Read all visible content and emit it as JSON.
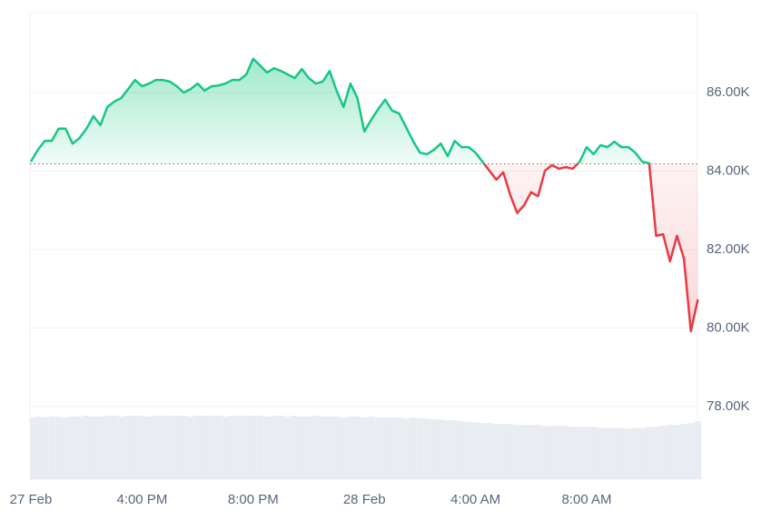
{
  "chart_data": {
    "type": "line",
    "categories": [
      "27 Feb",
      null,
      null,
      null,
      null,
      null,
      null,
      null,
      null,
      null,
      null,
      null,
      null,
      null,
      null,
      null,
      "4:00 PM",
      null,
      null,
      null,
      null,
      null,
      null,
      null,
      null,
      null,
      null,
      null,
      null,
      null,
      null,
      null,
      "8:00 PM",
      null,
      null,
      null,
      null,
      null,
      null,
      null,
      null,
      null,
      null,
      null,
      null,
      null,
      null,
      null,
      "28 Feb",
      null,
      null,
      null,
      null,
      null,
      null,
      null,
      null,
      null,
      null,
      null,
      null,
      null,
      null,
      null,
      "4:00 AM",
      null,
      null,
      null,
      null,
      null,
      null,
      null,
      null,
      null,
      null,
      null,
      null,
      null,
      null,
      null,
      "8:00 AM",
      null,
      null,
      null,
      null,
      null,
      null,
      null,
      null,
      null,
      null,
      null,
      null,
      null,
      null,
      null,
      null
    ],
    "values": [
      84240,
      84540,
      84770,
      84770,
      85080,
      85080,
      84700,
      84840,
      85080,
      85400,
      85170,
      85630,
      85770,
      85860,
      86090,
      86320,
      86160,
      86230,
      86320,
      86320,
      86280,
      86160,
      86000,
      86090,
      86230,
      86050,
      86160,
      86180,
      86230,
      86320,
      86320,
      86460,
      86860,
      86690,
      86510,
      86620,
      86550,
      86460,
      86370,
      86600,
      86370,
      86230,
      86280,
      86550,
      86050,
      85630,
      86230,
      85860,
      85010,
      85310,
      85580,
      85820,
      85540,
      85470,
      85120,
      84770,
      84470,
      84430,
      84540,
      84700,
      84380,
      84770,
      84610,
      84610,
      84470,
      84240,
      84010,
      83780,
      83970,
      83390,
      82930,
      83130,
      83460,
      83360,
      84010,
      84150,
      84060,
      84100,
      84060,
      84240,
      84610,
      84430,
      84660,
      84610,
      84750,
      84610,
      84610,
      84470,
      84240,
      84200,
      82350,
      82390,
      81700,
      82350,
      81770,
      79920,
      80730
    ],
    "volume": [
      66,
      67,
      66,
      67,
      67,
      66,
      67,
      67,
      68,
      67,
      67,
      68,
      68,
      67,
      68,
      68,
      68,
      67,
      68,
      68,
      68,
      68,
      68,
      67,
      68,
      68,
      68,
      68,
      67,
      68,
      68,
      68,
      68,
      68,
      67,
      68,
      68,
      67,
      68,
      67,
      67,
      68,
      67,
      67,
      67,
      66,
      67,
      67,
      66,
      67,
      66,
      66,
      66,
      66,
      65,
      66,
      65,
      65,
      64,
      64,
      63,
      63,
      62,
      61,
      61,
      60,
      60,
      59,
      59,
      59,
      58,
      58,
      58,
      58,
      57,
      57,
      57,
      57,
      56,
      56,
      56,
      56,
      55,
      55,
      55,
      55,
      54,
      55,
      55,
      56,
      56,
      57,
      58,
      58,
      59,
      60,
      62
    ],
    "baseline": 84185,
    "up_color": "#16c784",
    "down_color": "#ea3943",
    "volume_color": "#e9ecf1",
    "ylim": [
      76150,
      88035
    ],
    "yticks": [
      {
        "value": 78000,
        "label": "78.00K"
      },
      {
        "value": 80000,
        "label": "80.00K"
      },
      {
        "value": 82000,
        "label": "82.00K"
      },
      {
        "value": 84000,
        "label": "84.00K"
      },
      {
        "value": 86000,
        "label": "86.00K"
      }
    ],
    "grid": true
  }
}
